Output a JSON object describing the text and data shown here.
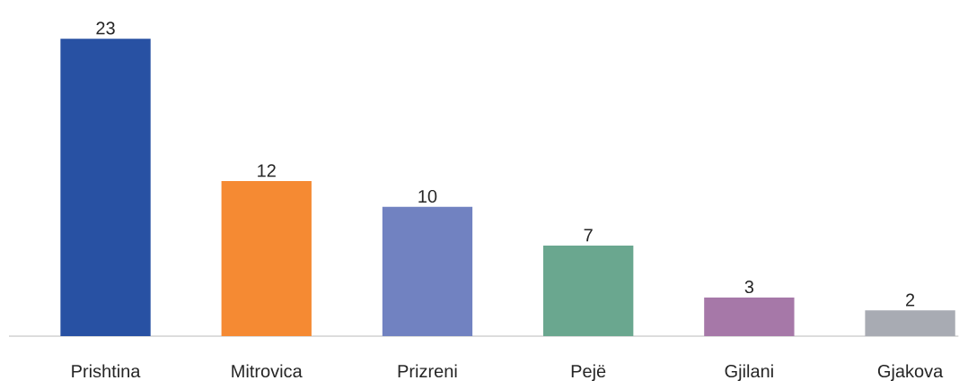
{
  "chart_data": {
    "type": "bar",
    "categories": [
      "Prishtina",
      "Mitrovica",
      "Prizreni",
      "Pejë",
      "Gjilani",
      "Gjakova"
    ],
    "values": [
      23,
      12,
      10,
      7,
      3,
      2
    ],
    "colors": [
      "#2851a3",
      "#f58a33",
      "#7182c1",
      "#6aa78f",
      "#a678a8",
      "#a8abb3"
    ],
    "data_labels": true
  }
}
